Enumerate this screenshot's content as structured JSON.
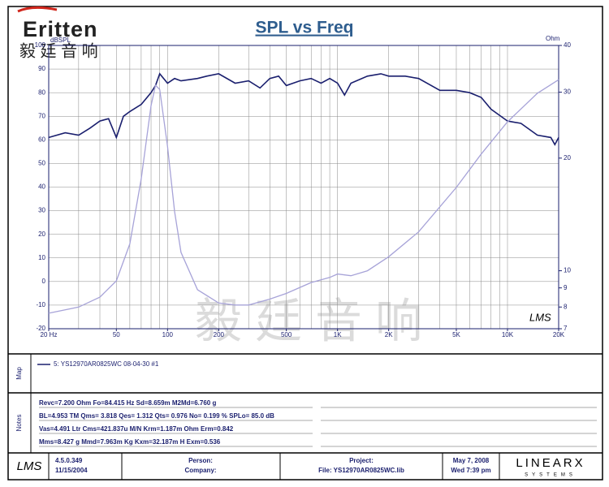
{
  "header": {
    "logo": "Eritten",
    "brand_cn": "毅 廷 音 响",
    "watermark": "毅 廷 音 响"
  },
  "chart_data": {
    "type": "line",
    "title": "SPL vs Freq",
    "ylabel": "dBSPL",
    "y2label": "Ohm",
    "mark": "LMS",
    "xscale": "log",
    "xlim": [
      20,
      20000
    ],
    "xticks": [
      {
        "value": 20,
        "label": "20 Hz"
      },
      50,
      100,
      200,
      500,
      {
        "value": 1000,
        "label": "1K"
      },
      {
        "value": 2000,
        "label": "2K"
      },
      {
        "value": 5000,
        "label": "5K"
      },
      {
        "value": 10000,
        "label": "10K"
      },
      {
        "value": 20000,
        "label": "20K"
      }
    ],
    "x_grid": [
      20,
      30,
      40,
      50,
      60,
      70,
      80,
      90,
      100,
      200,
      300,
      400,
      500,
      600,
      700,
      800,
      900,
      1000,
      2000,
      3000,
      4000,
      5000,
      6000,
      7000,
      8000,
      9000,
      10000,
      20000
    ],
    "ylim": [
      -20,
      100
    ],
    "yticks": [
      -20,
      -10,
      0,
      10,
      20,
      30,
      40,
      50,
      60,
      70,
      80,
      90,
      100
    ],
    "y2scale": "log",
    "y2lim": [
      7,
      40
    ],
    "y2ticks": [
      7,
      8,
      9,
      10,
      20,
      30,
      40
    ],
    "grid": true,
    "series": [
      {
        "name": "SPL",
        "color": "#1a1f6e",
        "x": [
          20,
          25,
          30,
          35,
          40,
          45,
          50,
          55,
          60,
          70,
          80,
          85,
          90,
          100,
          110,
          120,
          150,
          170,
          200,
          250,
          300,
          350,
          400,
          450,
          500,
          600,
          700,
          800,
          900,
          1000,
          1100,
          1200,
          1500,
          1800,
          2000,
          2500,
          3000,
          4000,
          5000,
          6000,
          7000,
          8000,
          10000,
          12000,
          15000,
          18000,
          19000,
          20000
        ],
        "values": [
          61,
          63,
          62,
          65,
          68,
          69,
          61,
          70,
          72,
          75,
          80,
          83,
          88,
          84,
          86,
          85,
          86,
          87,
          88,
          84,
          85,
          82,
          86,
          87,
          83,
          85,
          86,
          84,
          86,
          84,
          79,
          84,
          87,
          88,
          87,
          87,
          86,
          81,
          81,
          80,
          78,
          73,
          68,
          67,
          62,
          61,
          58,
          61
        ]
      },
      {
        "name": "Impedance",
        "color": "#a7a3d8",
        "axis": "y2",
        "x": [
          20,
          30,
          40,
          50,
          60,
          70,
          80,
          85,
          90,
          100,
          110,
          120,
          150,
          200,
          250,
          300,
          400,
          500,
          700,
          900,
          1000,
          1200,
          1500,
          2000,
          3000,
          5000,
          7000,
          10000,
          15000,
          20000
        ],
        "values": [
          7.7,
          8.0,
          8.5,
          9.4,
          11.8,
          17.6,
          27.6,
          31.3,
          30.5,
          21.5,
          14.4,
          11.2,
          8.9,
          8.2,
          8.1,
          8.1,
          8.4,
          8.7,
          9.3,
          9.6,
          9.8,
          9.7,
          10.0,
          10.9,
          12.7,
          16.7,
          20.5,
          25.0,
          29.8,
          32.4
        ]
      }
    ]
  },
  "map": {
    "label": "Map",
    "entry": "5: YS12970AR0825WC    08-04-30  #1"
  },
  "notes": {
    "label": "Notes",
    "lines": [
      "Revc=7.200 Ohm  Fo=84.415 Hz  Sd=8.659m M2Md=6.760 g",
      "BL=4.953 TM  Qms= 3.818  Qes= 1.312  Qts= 0.976  No= 0.199 %  SPLo= 85.0 dB",
      "Vas=4.491 Ltr  Cms=421.837u M/N  Krm=1.187m Ohm  Erm=0.842",
      "Mms=8.427 g  Mmd=7.963m Kg  Kxm=32.187m H  Exm=0.536"
    ]
  },
  "footer": {
    "logo": "LMS",
    "version": "4.5.0.349",
    "build_date": "11/15/2004",
    "person": "Person:",
    "company": "Company:",
    "project": "Project:",
    "file": "File: YS12970AR0825WC.lib",
    "date": "May  7, 2008",
    "time": "Wed  7:39 pm",
    "brand": "LINEARX",
    "brand_sub": "SYSTEMS"
  }
}
